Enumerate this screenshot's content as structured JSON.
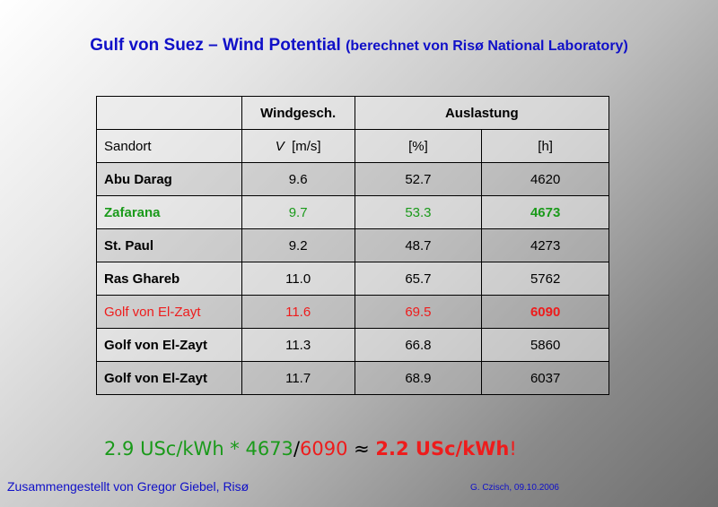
{
  "title": {
    "main": "Gulf von Suez – Wind Potential",
    "sub": "(berechnet von Risø National Laboratory)"
  },
  "table": {
    "header1": {
      "windgesch": "Windgesch.",
      "auslastung": "Auslastung"
    },
    "header2": {
      "sandort": "Sandort",
      "v_symbol": "V",
      "v_unit": "[m/s]",
      "percent": "[%]",
      "hours": "[h]"
    },
    "rows": [
      {
        "name": "Abu Darag",
        "speed": "9.6",
        "percent": "52.7",
        "hours": "4620"
      },
      {
        "name": "Zafarana",
        "speed": "9.7",
        "percent": "53.3",
        "hours": "4673"
      },
      {
        "name": "St. Paul",
        "speed": "9.2",
        "percent": "48.7",
        "hours": "4273"
      },
      {
        "name": "Ras Ghareb",
        "speed": "11.0",
        "percent": "65.7",
        "hours": "5762"
      },
      {
        "name": "Golf von El-Zayt",
        "speed": "11.6",
        "percent": "69.5",
        "hours": "6090"
      },
      {
        "name": "Golf von El-Zayt",
        "speed": "11.3",
        "percent": "66.8",
        "hours": "5860"
      },
      {
        "name": "Golf von El-Zayt",
        "speed": "11.7",
        "percent": "68.9",
        "hours": "6037"
      }
    ]
  },
  "formula": {
    "part1": "2.9 USc/kWh * 4673",
    "slash": "/",
    "part2": "6090",
    "approx": " ≈ ",
    "result": "2.2 USc/kWh",
    "bang": "!"
  },
  "footer": {
    "credit": "Zusammengestellt von Gregor Giebel, Risø",
    "author": "G. Czisch, 09.10.2006"
  },
  "colors": {
    "title": "#1010c8",
    "highlight_green": "#1a9a1a",
    "highlight_red": "#ee1c1c"
  }
}
